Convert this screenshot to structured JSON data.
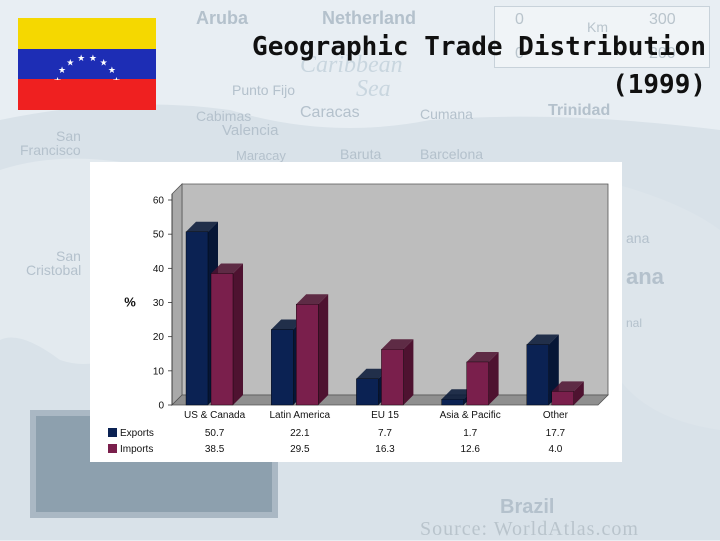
{
  "title_line1": "Geographic Trade Distribution",
  "title_line2": "(1999)",
  "map": {
    "labels": [
      "Aruba",
      "Netherland",
      "Caribbean",
      "Sea",
      "Punto Fijo",
      "Cabimas",
      "Caracas",
      "Cumana",
      "Trinidad",
      "Valencia",
      "San",
      "Francisco",
      "Maracay",
      "Baruta",
      "Barcelona",
      "San",
      "Cristobal",
      "Brazil",
      "ana",
      "ana",
      "nal"
    ],
    "scale_km_label": "Km",
    "scale_values": [
      "0",
      "300",
      "0",
      "200"
    ],
    "source": "Source: WorldAtlas.com"
  },
  "flag": {
    "colors": [
      "#f5d800",
      "#1d2db5",
      "#ef2020"
    ],
    "star_color": "#ffffff"
  },
  "chart_data": {
    "type": "bar",
    "categories": [
      "US & Canada",
      "Latin America",
      "EU 15",
      "Asia & Pacific",
      "Other"
    ],
    "series": [
      {
        "name": "Exports",
        "values": [
          50.7,
          22.1,
          7.7,
          1.7,
          17.7
        ],
        "color": "#0b2253",
        "side_color": "#061636"
      },
      {
        "name": "Imports",
        "values": [
          38.5,
          29.5,
          16.3,
          12.6,
          4.0
        ],
        "color": "#7a1f4c",
        "side_color": "#4e1230"
      }
    ],
    "ylabel": "%",
    "ylim": [
      0,
      60
    ],
    "yticks": [
      0,
      10,
      20,
      30,
      40,
      50,
      60
    ],
    "table_values": {
      "Exports": [
        "50.7",
        "22.1",
        "7.7",
        "1.7",
        "17.7"
      ],
      "Imports": [
        "38.5",
        "29.5",
        "16.3",
        "12.6",
        "4.0"
      ]
    },
    "wall_color": "#bdbdbd",
    "floor_color": "#8f8f8f"
  }
}
